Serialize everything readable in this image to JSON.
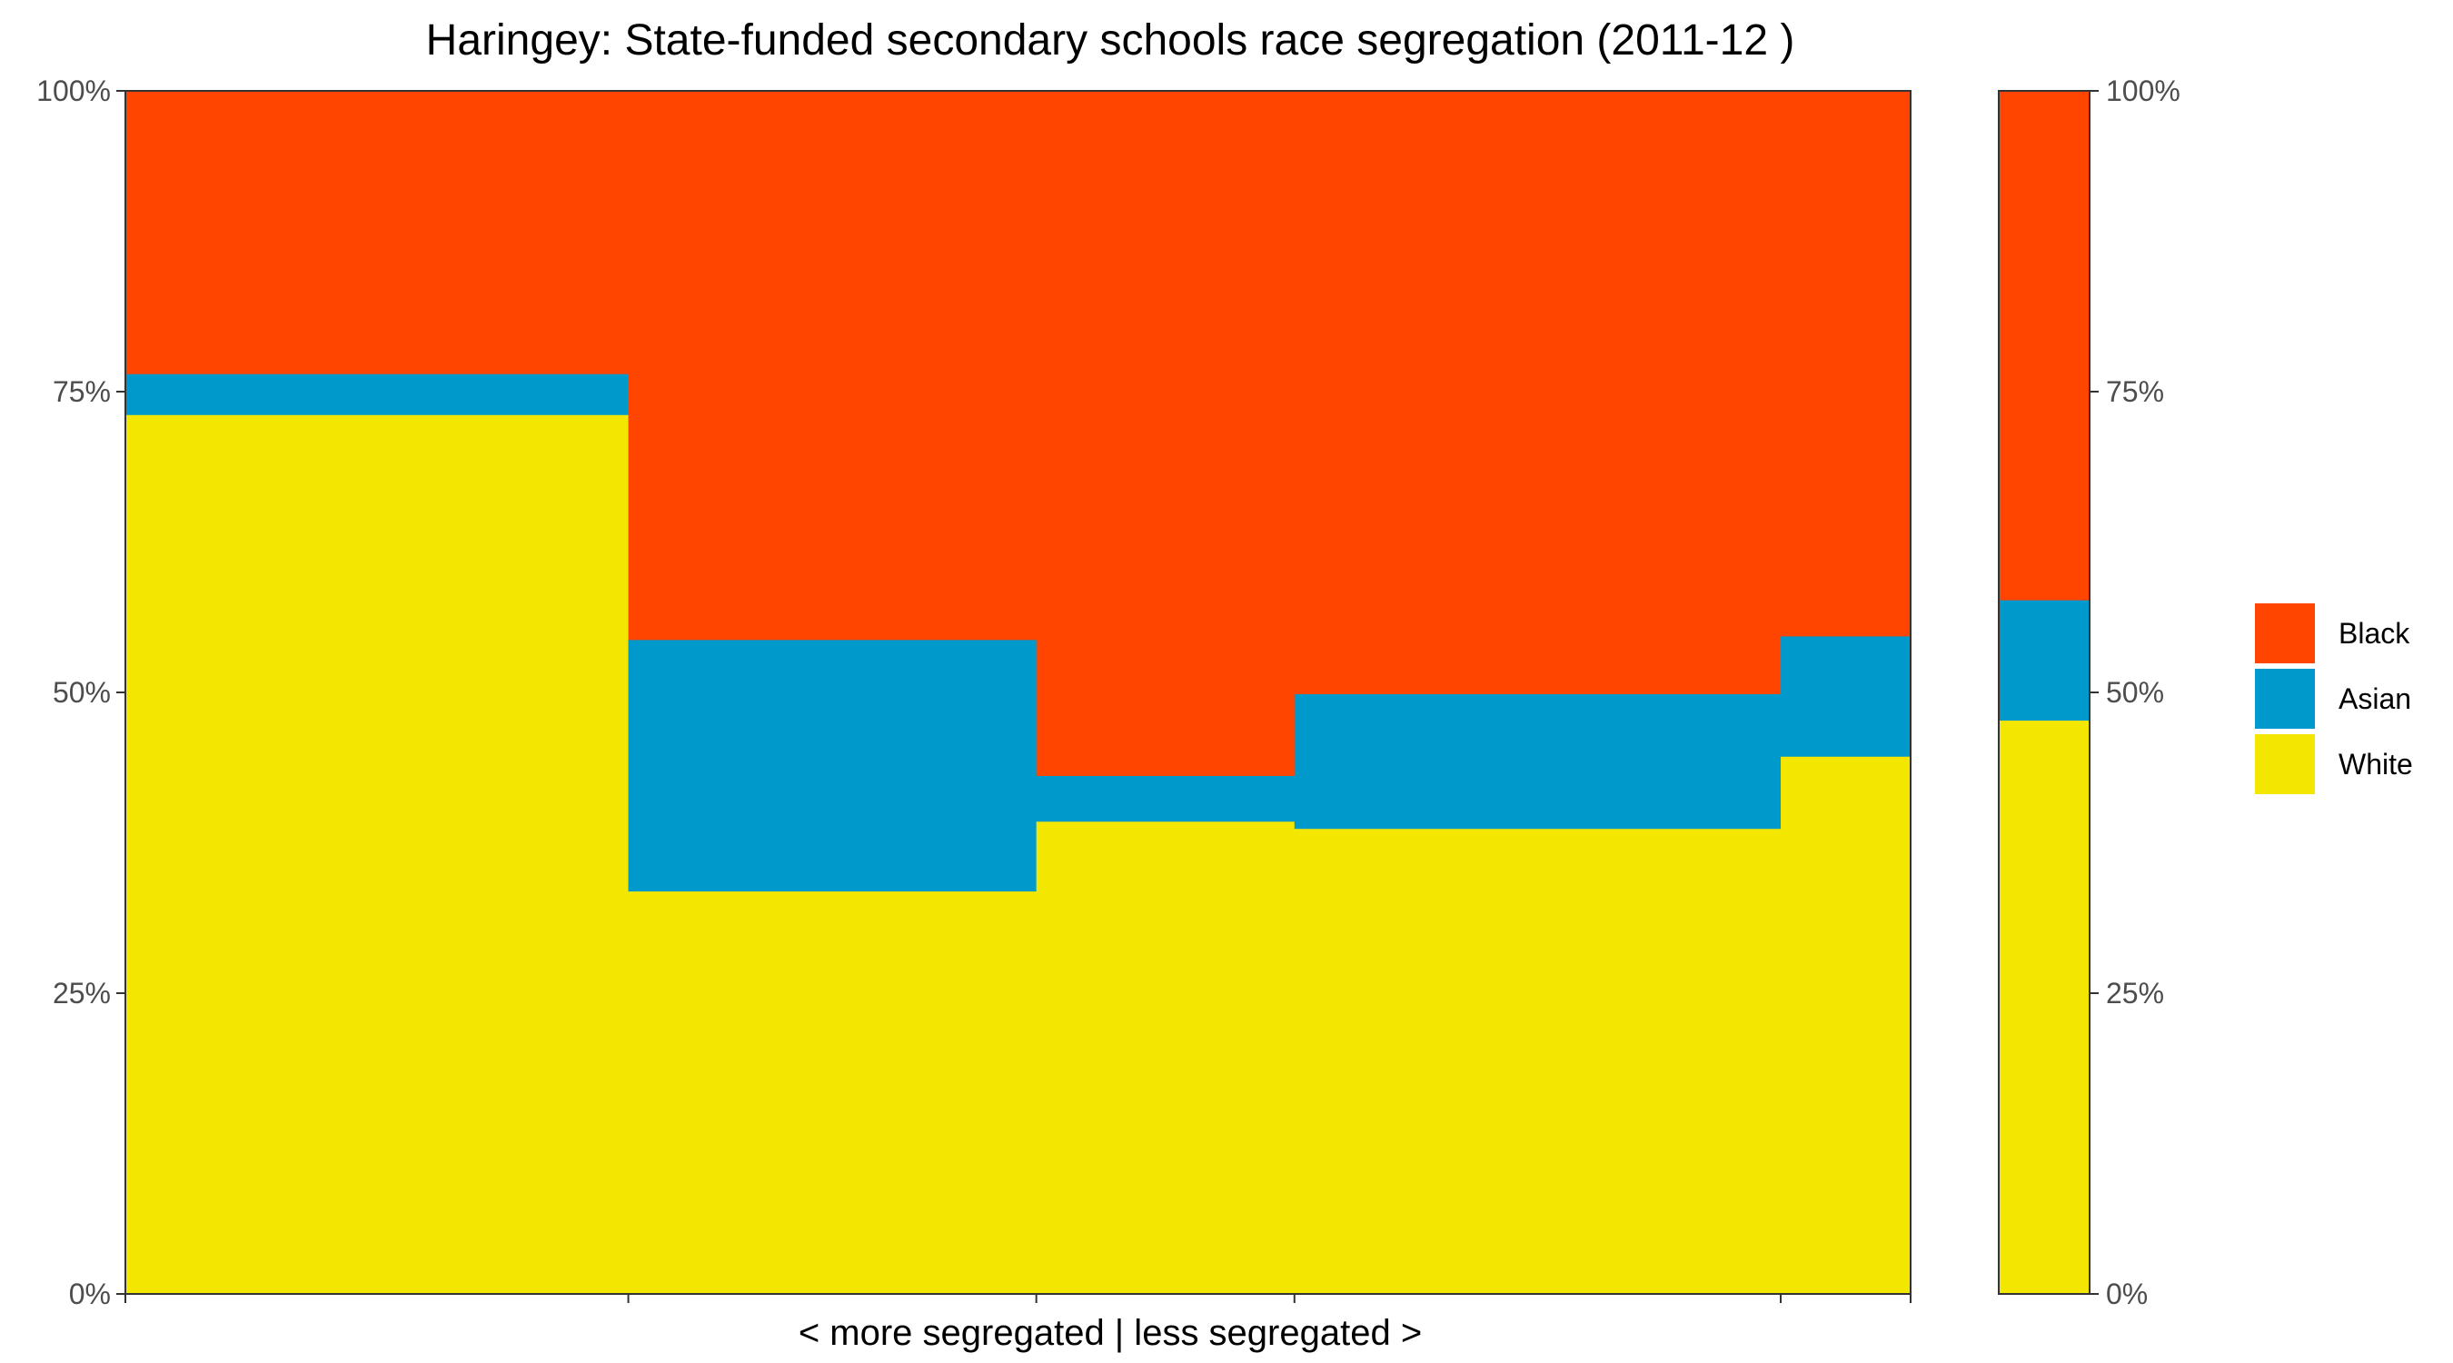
{
  "chart_data": {
    "type": "bar",
    "subtype": "stacked-100-percent-marimekko",
    "title": "Haringey: State-funded secondary schools race segregation (2011-12 )",
    "xlabel": "< more segregated | less segregated >",
    "ylabel": "",
    "ylim": [
      0,
      1
    ],
    "y_ticks": [
      0,
      0.25,
      0.5,
      0.75,
      1.0
    ],
    "y_tick_labels": [
      "0%",
      "25%",
      "50%",
      "75%",
      "100%"
    ],
    "secondary_y_axis": true,
    "grid": false,
    "legend_position": "right",
    "series_order": [
      "White",
      "Asian",
      "Black"
    ],
    "legend": [
      {
        "name": "Black",
        "color": "#FF4500"
      },
      {
        "name": "Asian",
        "color": "#0099CC"
      },
      {
        "name": "White",
        "color": "#F3E600"
      }
    ],
    "groups": [
      {
        "width": 0.302,
        "White": 0.731,
        "Asian": 0.034,
        "Black": 0.235
      },
      {
        "width": 0.245,
        "White": 0.335,
        "Asian": 0.209,
        "Black": 0.456
      },
      {
        "width": 0.155,
        "White": 0.393,
        "Asian": 0.038,
        "Black": 0.569
      },
      {
        "width": 0.292,
        "White": 0.387,
        "Asian": 0.112,
        "Black": 0.501
      },
      {
        "width": 0.078,
        "White": 0.447,
        "Asian": 0.1,
        "Black": 0.453
      }
    ],
    "overall": {
      "White": 0.477,
      "Asian": 0.1,
      "Black": 0.423
    }
  }
}
